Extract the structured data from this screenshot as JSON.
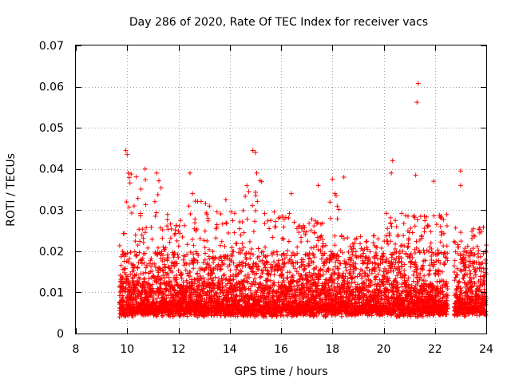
{
  "chart_data": {
    "type": "scatter",
    "title": "Day 286 of 2020, Rate Of TEC Index for receiver vacs",
    "xlabel": "GPS time / hours",
    "ylabel": "ROTI / TECUs",
    "xlim": [
      8,
      24
    ],
    "ylim": [
      0,
      0.07
    ],
    "x_ticks": [
      8,
      10,
      12,
      14,
      16,
      18,
      20,
      22,
      24
    ],
    "x_tick_labels": [
      "8",
      "10",
      "12",
      "14",
      "16",
      "18",
      "20",
      "22",
      "24"
    ],
    "y_ticks": [
      0,
      0.01,
      0.02,
      0.03,
      0.04,
      0.05,
      0.06,
      0.07
    ],
    "y_tick_labels": [
      "0",
      "0.01",
      "0.02",
      "0.03",
      "0.04",
      "0.05",
      "0.06",
      "0.07"
    ],
    "grid": true,
    "marker": "+",
    "color": "#ff0000",
    "data_span": [
      9.7,
      24
    ],
    "data_gap": [
      22.5,
      22.75
    ],
    "notable_points": [
      {
        "x": 9.95,
        "y": 0.0445
      },
      {
        "x": 10.0,
        "y": 0.0435
      },
      {
        "x": 10.05,
        "y": 0.039
      },
      {
        "x": 10.7,
        "y": 0.04
      },
      {
        "x": 11.15,
        "y": 0.039
      },
      {
        "x": 12.45,
        "y": 0.039
      },
      {
        "x": 12.55,
        "y": 0.034
      },
      {
        "x": 13.85,
        "y": 0.0325
      },
      {
        "x": 14.9,
        "y": 0.0445
      },
      {
        "x": 15.0,
        "y": 0.044
      },
      {
        "x": 15.05,
        "y": 0.039
      },
      {
        "x": 16.4,
        "y": 0.034
      },
      {
        "x": 17.45,
        "y": 0.036
      },
      {
        "x": 18.0,
        "y": 0.0375
      },
      {
        "x": 18.1,
        "y": 0.034
      },
      {
        "x": 18.45,
        "y": 0.038
      },
      {
        "x": 20.35,
        "y": 0.042
      },
      {
        "x": 20.3,
        "y": 0.039
      },
      {
        "x": 21.35,
        "y": 0.0608
      },
      {
        "x": 21.3,
        "y": 0.0562
      },
      {
        "x": 21.25,
        "y": 0.0385
      },
      {
        "x": 21.95,
        "y": 0.037
      },
      {
        "x": 23.0,
        "y": 0.0395
      },
      {
        "x": 23.0,
        "y": 0.036
      },
      {
        "x": 24.0,
        "y": 0.0215
      }
    ],
    "density_profile": {
      "typical_low": 0.004,
      "typical_high": 0.02,
      "segments": [
        {
          "x0": 9.7,
          "x1": 10.4,
          "peak": 0.039
        },
        {
          "x0": 10.4,
          "x1": 11.4,
          "peak": 0.038
        },
        {
          "x0": 11.4,
          "x1": 12.4,
          "peak": 0.029
        },
        {
          "x0": 12.4,
          "x1": 13.4,
          "peak": 0.033
        },
        {
          "x0": 13.4,
          "x1": 14.6,
          "peak": 0.03
        },
        {
          "x0": 14.6,
          "x1": 15.3,
          "peak": 0.038
        },
        {
          "x0": 15.3,
          "x1": 16.6,
          "peak": 0.03
        },
        {
          "x0": 16.6,
          "x1": 17.8,
          "peak": 0.028
        },
        {
          "x0": 17.8,
          "x1": 18.3,
          "peak": 0.034
        },
        {
          "x0": 18.3,
          "x1": 20.0,
          "peak": 0.024
        },
        {
          "x0": 20.0,
          "x1": 21.0,
          "peak": 0.03
        },
        {
          "x0": 21.0,
          "x1": 22.5,
          "peak": 0.029
        },
        {
          "x0": 22.75,
          "x1": 24.0,
          "peak": 0.026
        }
      ]
    }
  }
}
